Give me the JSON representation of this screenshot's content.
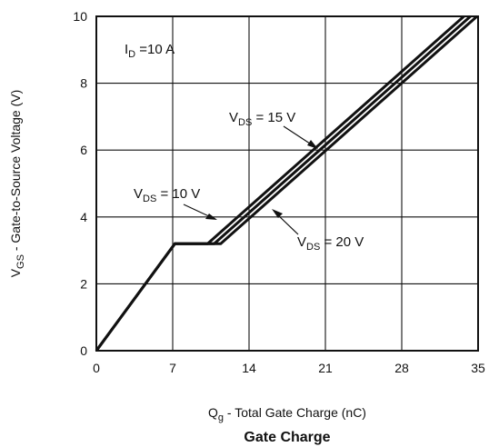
{
  "chart_data": {
    "type": "line",
    "title": "Gate Charge",
    "xlabel": {
      "main": "Q",
      "sub": "g",
      "rest": " - Total Gate Charge (nC)"
    },
    "ylabel": {
      "main": "V",
      "sub": "GS",
      "rest": " - Gate-to-Source Voltage (V)"
    },
    "xlim": [
      0,
      35
    ],
    "ylim": [
      0,
      10
    ],
    "xticks": [
      0,
      7,
      14,
      21,
      28,
      35
    ],
    "yticks": [
      0,
      2,
      4,
      6,
      8,
      10
    ],
    "grid": true,
    "series": [
      {
        "name": "VDS = 10 V",
        "x": [
          0,
          7.2,
          10.2,
          33.7
        ],
        "y": [
          0,
          3.2,
          3.2,
          10
        ]
      },
      {
        "name": "VDS = 15 V",
        "x": [
          0,
          7.2,
          10.8,
          34.3
        ],
        "y": [
          0,
          3.2,
          3.2,
          10
        ]
      },
      {
        "name": "VDS = 20 V",
        "x": [
          0,
          7.2,
          11.4,
          34.9
        ],
        "y": [
          0,
          3.2,
          3.2,
          10
        ]
      }
    ],
    "annotations": [
      {
        "id": "id",
        "main": "I",
        "sub": "D",
        "rest": " =10 A"
      },
      {
        "id": "vds10",
        "main": "V",
        "sub": "DS",
        "rest": " = 10 V"
      },
      {
        "id": "vds15",
        "main": "V",
        "sub": "DS",
        "rest": " = 15 V"
      },
      {
        "id": "vds20",
        "main": "V",
        "sub": "DS",
        "rest": " = 20 V"
      }
    ]
  }
}
